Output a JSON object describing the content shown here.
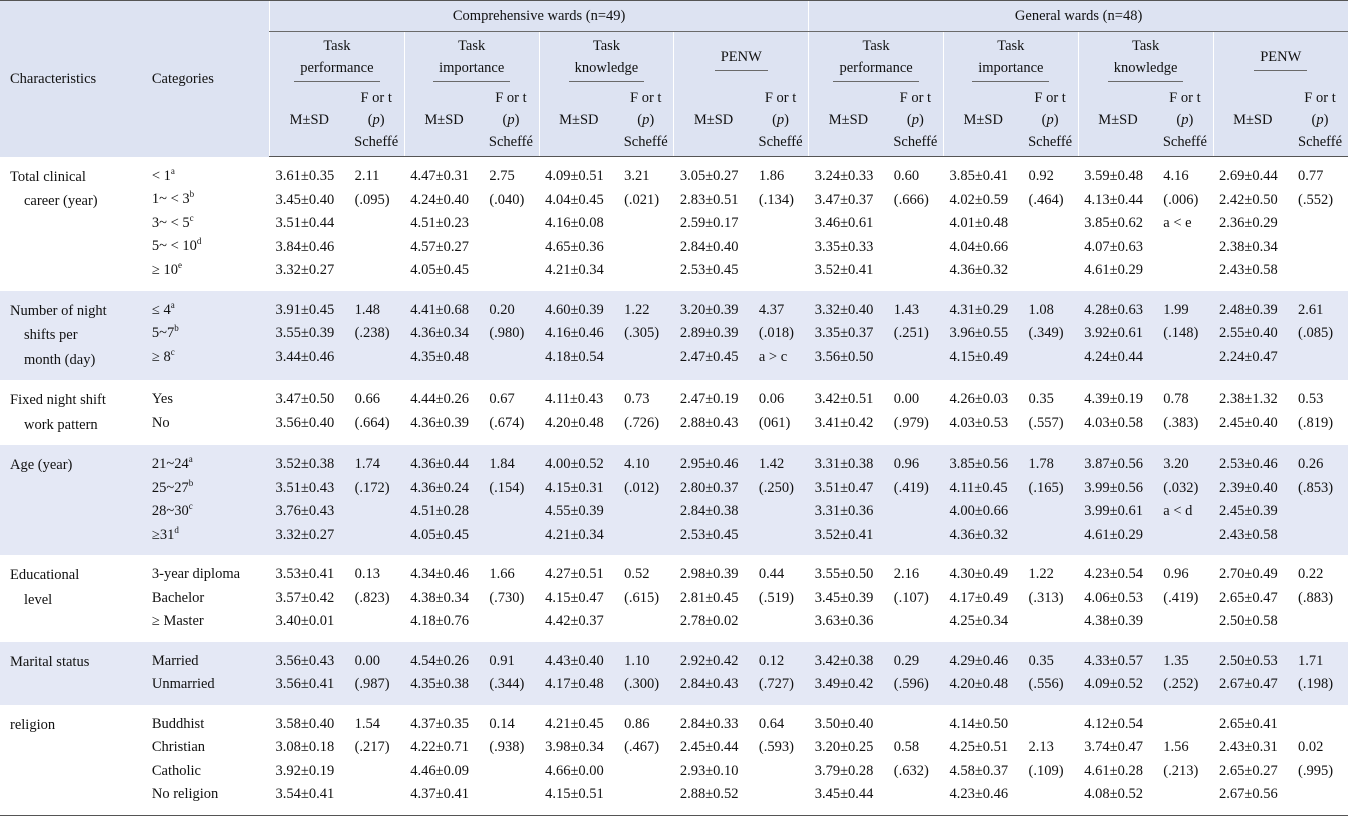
{
  "header": {
    "characteristics": "Characteristics",
    "categories": "Categories",
    "comprehensive": "Comprehensive wards (n=49)",
    "general": "General wards (n=48)",
    "task_performance_1": "Task",
    "task_performance_2": "performance",
    "task_importance_1": "Task",
    "task_importance_2": "importance",
    "task_knowledge_1": "Task",
    "task_knowledge_2": "knowledge",
    "penw": "PENW",
    "msd": "M±SD",
    "f_or_t": "F or t",
    "p_open": "(",
    "p": "p",
    "p_close": ")",
    "scheffe": "Scheffé"
  },
  "groups": [
    {
      "characteristic": [
        "Total clinical",
        "career (year)"
      ],
      "categories": [
        "< 1|a",
        "1~ < 3|b",
        "3~ < 5|c",
        "5~ < 10|d",
        "≥ 10|e"
      ],
      "cols": [
        [
          "3.61±0.35",
          "3.45±0.40",
          "3.51±0.44",
          "3.84±0.46",
          "3.32±0.27"
        ],
        [
          "2.11",
          "(.095)"
        ],
        [
          "4.47±0.31",
          "4.24±0.40",
          "4.51±0.23",
          "4.57±0.27",
          "4.05±0.45"
        ],
        [
          "2.75",
          "(.040)"
        ],
        [
          "4.09±0.51",
          "4.04±0.45",
          "4.16±0.08",
          "4.65±0.36",
          "4.21±0.34"
        ],
        [
          "3.21",
          "(.021)"
        ],
        [
          "3.05±0.27",
          "2.83±0.51",
          "2.59±0.17",
          "2.84±0.40",
          "2.53±0.45"
        ],
        [
          "1.86",
          "(.134)"
        ],
        [
          "3.24±0.33",
          "3.47±0.37",
          "3.46±0.61",
          "3.35±0.33",
          "3.52±0.41"
        ],
        [
          "0.60",
          "(.666)"
        ],
        [
          "3.85±0.41",
          "4.02±0.59",
          "4.01±0.48",
          "4.04±0.66",
          "4.36±0.32"
        ],
        [
          "0.92",
          "(.464)"
        ],
        [
          "3.59±0.48",
          "4.13±0.44",
          "3.85±0.62",
          "4.07±0.63",
          "4.61±0.29"
        ],
        [
          "4.16",
          "(.006)",
          "a < e"
        ],
        [
          "2.69±0.44",
          "2.42±0.50",
          "2.36±0.29",
          "2.38±0.34",
          "2.43±0.58"
        ],
        [
          "0.77",
          "(.552)"
        ]
      ]
    },
    {
      "characteristic": [
        "Number of night",
        "shifts per",
        "month (day)"
      ],
      "categories": [
        "≤ 4|a",
        "5~7|b",
        "≥ 8|c"
      ],
      "cols": [
        [
          "3.91±0.45",
          "3.55±0.39",
          "3.44±0.46"
        ],
        [
          "1.48",
          "(.238)"
        ],
        [
          "4.41±0.68",
          "4.36±0.34",
          "4.35±0.48"
        ],
        [
          "0.20",
          "(.980)"
        ],
        [
          "4.60±0.39",
          "4.16±0.46",
          "4.18±0.54"
        ],
        [
          "1.22",
          "(.305)"
        ],
        [
          "3.20±0.39",
          "2.89±0.39",
          "2.47±0.45"
        ],
        [
          "4.37",
          "(.018)",
          "a > c"
        ],
        [
          "3.32±0.40",
          "3.35±0.37",
          "3.56±0.50"
        ],
        [
          "1.43",
          "(.251)"
        ],
        [
          "4.31±0.29",
          "3.96±0.55",
          "4.15±0.49"
        ],
        [
          "1.08",
          "(.349)"
        ],
        [
          "4.28±0.63",
          "3.92±0.61",
          "4.24±0.44"
        ],
        [
          "1.99",
          "(.148)"
        ],
        [
          "2.48±0.39",
          "2.55±0.40",
          "2.24±0.47"
        ],
        [
          "2.61",
          "(.085)"
        ]
      ]
    },
    {
      "characteristic": [
        "Fixed night shift",
        "work pattern"
      ],
      "categories": [
        "Yes",
        "No"
      ],
      "cols": [
        [
          "3.47±0.50",
          "3.56±0.40"
        ],
        [
          "0.66",
          "(.664)"
        ],
        [
          "4.44±0.26",
          "4.36±0.39"
        ],
        [
          "0.67",
          "(.674)"
        ],
        [
          "4.11±0.43",
          "4.20±0.48"
        ],
        [
          "0.73",
          "(.726)"
        ],
        [
          "2.47±0.19",
          "2.88±0.43"
        ],
        [
          "0.06",
          "(061)"
        ],
        [
          "3.42±0.51",
          "3.41±0.42"
        ],
        [
          "0.00",
          "(.979)"
        ],
        [
          "4.26±0.03",
          "4.03±0.53"
        ],
        [
          "0.35",
          "(.557)"
        ],
        [
          "4.39±0.19",
          "4.03±0.58"
        ],
        [
          "0.78",
          "(.383)"
        ],
        [
          "2.38±1.32",
          "2.45±0.40"
        ],
        [
          "0.53",
          "(.819)"
        ]
      ]
    },
    {
      "characteristic": [
        "Age (year)"
      ],
      "categories": [
        "21~24|a",
        "25~27|b",
        "28~30|c",
        "≥31|d"
      ],
      "cols": [
        [
          "3.52±0.38",
          "3.51±0.43",
          "3.76±0.43",
          "3.32±0.27"
        ],
        [
          "1.74",
          "(.172)"
        ],
        [
          "4.36±0.44",
          "4.36±0.24",
          "4.51±0.28",
          "4.05±0.45"
        ],
        [
          "1.84",
          "(.154)"
        ],
        [
          "4.00±0.52",
          "4.15±0.31",
          "4.55±0.39",
          "4.21±0.34"
        ],
        [
          "4.10",
          "(.012)"
        ],
        [
          "2.95±0.46",
          "2.80±0.37",
          "2.84±0.38",
          "2.53±0.45"
        ],
        [
          "1.42",
          "(.250)"
        ],
        [
          "3.31±0.38",
          "3.51±0.47",
          "3.31±0.36",
          "3.52±0.41"
        ],
        [
          "0.96",
          "(.419)"
        ],
        [
          "3.85±0.56",
          "4.11±0.45",
          "4.00±0.66",
          "4.36±0.32"
        ],
        [
          "1.78",
          "(.165)"
        ],
        [
          "3.87±0.56",
          "3.99±0.56",
          "3.99±0.61",
          "4.61±0.29"
        ],
        [
          "3.20",
          "(.032)",
          "a < d"
        ],
        [
          "2.53±0.46",
          "2.39±0.40",
          "2.45±0.39",
          "2.43±0.58"
        ],
        [
          "0.26",
          "(.853)"
        ]
      ]
    },
    {
      "characteristic": [
        "Educational",
        "level"
      ],
      "categories": [
        "3-year diploma",
        "Bachelor",
        "≥ Master"
      ],
      "cols": [
        [
          "3.53±0.41",
          "3.57±0.42",
          "3.40±0.01"
        ],
        [
          "0.13",
          "(.823)"
        ],
        [
          "4.34±0.46",
          "4.38±0.34",
          "4.18±0.76"
        ],
        [
          "1.66",
          "(.730)"
        ],
        [
          "4.27±0.51",
          "4.15±0.47",
          "4.42±0.37"
        ],
        [
          "0.52",
          "(.615)"
        ],
        [
          "2.98±0.39",
          "2.81±0.45",
          "2.78±0.02"
        ],
        [
          "0.44",
          "(.519)"
        ],
        [
          "3.55±0.50",
          "3.45±0.39",
          "3.63±0.36"
        ],
        [
          "2.16",
          "(.107)"
        ],
        [
          "4.30±0.49",
          "4.17±0.49",
          "4.25±0.34"
        ],
        [
          "1.22",
          "(.313)"
        ],
        [
          "4.23±0.54",
          "4.06±0.53",
          "4.38±0.39"
        ],
        [
          "0.96",
          "(.419)"
        ],
        [
          "2.70±0.49",
          "2.65±0.47",
          "2.50±0.58"
        ],
        [
          "0.22",
          "(.883)"
        ]
      ]
    },
    {
      "characteristic": [
        "Marital status"
      ],
      "categories": [
        "Married",
        "Unmarried"
      ],
      "cols": [
        [
          "3.56±0.43",
          "3.56±0.41"
        ],
        [
          "0.00",
          "(.987)"
        ],
        [
          "4.54±0.26",
          "4.35±0.38"
        ],
        [
          "0.91",
          "(.344)"
        ],
        [
          "4.43±0.40",
          "4.17±0.48"
        ],
        [
          "1.10",
          "(.300)"
        ],
        [
          "2.92±0.42",
          "2.84±0.43"
        ],
        [
          "0.12",
          "(.727)"
        ],
        [
          "3.42±0.38",
          "3.49±0.42"
        ],
        [
          "0.29",
          "(.596)"
        ],
        [
          "4.29±0.46",
          "4.20±0.48"
        ],
        [
          "0.35",
          "(.556)"
        ],
        [
          "4.33±0.57",
          "4.09±0.52"
        ],
        [
          "1.35",
          "(.252)"
        ],
        [
          "2.50±0.53",
          "2.67±0.47"
        ],
        [
          "1.71",
          "(.198)"
        ]
      ]
    },
    {
      "characteristic": [
        "religion"
      ],
      "categories": [
        "Buddhist",
        "Christian",
        "Catholic",
        "No religion"
      ],
      "cols": [
        [
          "3.58±0.40",
          "3.08±0.18",
          "3.92±0.19",
          "3.54±0.41"
        ],
        [
          "1.54",
          "(.217)"
        ],
        [
          "4.37±0.35",
          "4.22±0.71",
          "4.46±0.09",
          "4.37±0.41"
        ],
        [
          "0.14",
          "(.938)"
        ],
        [
          "4.21±0.45",
          "3.98±0.34",
          "4.66±0.00",
          "4.15±0.51"
        ],
        [
          "0.86",
          "(.467)"
        ],
        [
          "2.84±0.33",
          "2.45±0.44",
          "2.93±0.10",
          "2.88±0.52"
        ],
        [
          "0.64",
          "(.593)"
        ],
        [
          "3.50±0.40",
          "3.20±0.25",
          "3.79±0.28",
          "3.45±0.44"
        ],
        [
          "",
          "0.58",
          "(.632)"
        ],
        [
          "4.14±0.50",
          "4.25±0.51",
          "4.58±0.37",
          "4.23±0.46"
        ],
        [
          "",
          "2.13",
          "(.109)"
        ],
        [
          "4.12±0.54",
          "3.74±0.47",
          "4.61±0.28",
          "4.08±0.52"
        ],
        [
          "",
          "1.56",
          "(.213)"
        ],
        [
          "2.65±0.41",
          "2.43±0.31",
          "2.65±0.27",
          "2.67±0.56"
        ],
        [
          "",
          "0.02",
          "(.995)"
        ]
      ]
    }
  ]
}
